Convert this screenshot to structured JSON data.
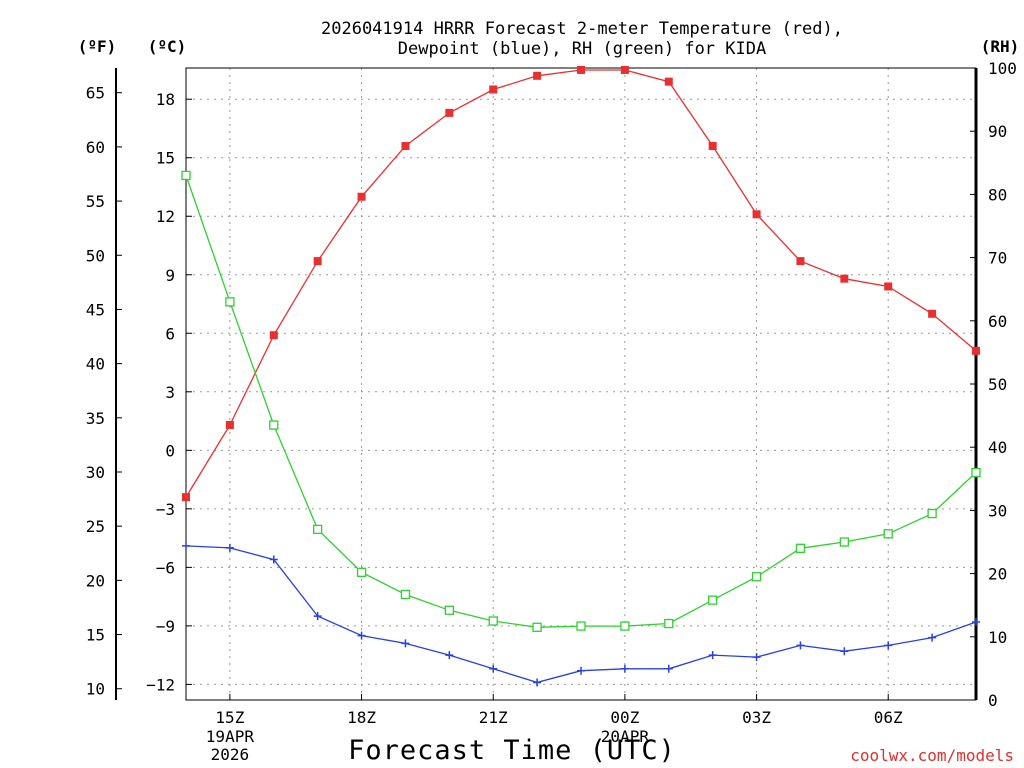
{
  "chart_data": {
    "type": "line",
    "title_line1": "2026041914 HRRR Forecast 2-meter Temperature (red),",
    "title_line2": "Dewpoint (blue), RH (green) for KIDA",
    "xlabel": "Forecast Time (UTC)",
    "credit": "coolwx.com/models",
    "unit_labels": {
      "fahrenheit": "(ºF)",
      "celsius": "(ºC)",
      "rh": "(RH)"
    },
    "x_hours": [
      14,
      15,
      16,
      17,
      18,
      19,
      20,
      21,
      22,
      23,
      24,
      25,
      26,
      27,
      28,
      29,
      30,
      31,
      32
    ],
    "x_ticks": [
      {
        "hour": 15,
        "label": "15Z",
        "sub1": "19APR",
        "sub2": "2026"
      },
      {
        "hour": 18,
        "label": "18Z",
        "sub1": "",
        "sub2": ""
      },
      {
        "hour": 21,
        "label": "21Z",
        "sub1": "",
        "sub2": ""
      },
      {
        "hour": 24,
        "label": "00Z",
        "sub1": "20APR",
        "sub2": ""
      },
      {
        "hour": 27,
        "label": "03Z",
        "sub1": "",
        "sub2": ""
      },
      {
        "hour": 30,
        "label": "06Z",
        "sub1": "",
        "sub2": ""
      }
    ],
    "axes": {
      "celsius": {
        "ticks": [
          18,
          15,
          12,
          9,
          6,
          3,
          0,
          -3,
          -6,
          -9,
          -12
        ],
        "range": [
          -12.8,
          19.6
        ]
      },
      "fahrenheit": {
        "ticks": [
          65,
          60,
          55,
          50,
          45,
          40,
          35,
          30,
          25,
          20,
          15,
          10
        ]
      },
      "rh": {
        "ticks": [
          100,
          90,
          80,
          70,
          60,
          50,
          40,
          30,
          20,
          10,
          0
        ],
        "range": [
          0,
          100
        ]
      }
    },
    "series": [
      {
        "name": "Temperature",
        "unit": "C",
        "color": "#e83030",
        "marker": "filled-square",
        "values": [
          -2.4,
          1.3,
          5.9,
          9.7,
          13.0,
          15.6,
          17.3,
          18.5,
          19.2,
          19.5,
          19.5,
          18.9,
          15.6,
          12.1,
          9.7,
          8.8,
          8.4,
          7.0,
          5.1
        ]
      },
      {
        "name": "Dewpoint",
        "unit": "C",
        "color": "#2840e0",
        "marker": "plus",
        "values": [
          -4.9,
          -5.0,
          -5.6,
          -8.5,
          -9.5,
          -9.9,
          -10.5,
          -11.2,
          -11.9,
          -11.3,
          -11.2,
          -11.2,
          -10.5,
          -10.6,
          -10.0,
          -10.3,
          -10.0,
          -9.6,
          -8.8
        ]
      },
      {
        "name": "RH",
        "unit": "%",
        "color": "#30d030",
        "marker": "open-square",
        "values": [
          83,
          63,
          43.5,
          27,
          20.2,
          16.7,
          14.2,
          12.5,
          11.5,
          11.7,
          11.7,
          12.1,
          15.8,
          19.5,
          24,
          25,
          26.3,
          29.5,
          36
        ]
      }
    ],
    "grid": true
  }
}
